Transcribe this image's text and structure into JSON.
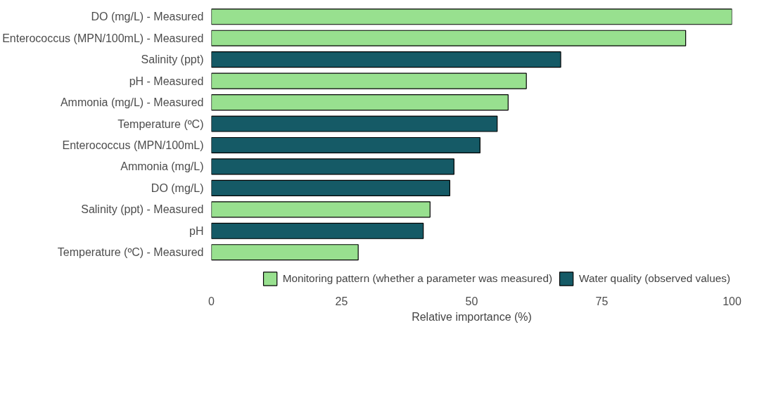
{
  "chart_data": {
    "type": "bar",
    "orientation": "horizontal",
    "xlabel": "Relative importance (%)",
    "categories": [
      "DO (mg/L) - Measured",
      "Enterococcus (MPN/100mL) - Measured",
      "Salinity (ppt)",
      "pH - Measured",
      "Ammonia (mg/L) - Measured",
      "Temperature (ºC)",
      "Enterococcus (MPN/100mL)",
      "Ammonia (mg/L)",
      "DO (mg/L)",
      "Salinity (ppt) - Measured",
      "pH",
      "Temperature (ºC) - Measured"
    ],
    "series": [
      {
        "name": "Monitoring pattern (whether a parameter was measured)",
        "color": "#98e08f",
        "values": [
          100,
          91.1,
          null,
          60.5,
          57.0,
          null,
          null,
          null,
          null,
          42.0,
          null,
          28.2
        ]
      },
      {
        "name": "Water quality (observed values)",
        "color": "#155a66",
        "values": [
          null,
          null,
          67.1,
          null,
          null,
          54.9,
          51.6,
          46.6,
          45.8,
          null,
          40.7,
          null
        ]
      }
    ],
    "xlim": [
      0,
      100
    ],
    "xticks": [
      0,
      25,
      50,
      75,
      100
    ],
    "grid": false,
    "legend": "bottom"
  }
}
